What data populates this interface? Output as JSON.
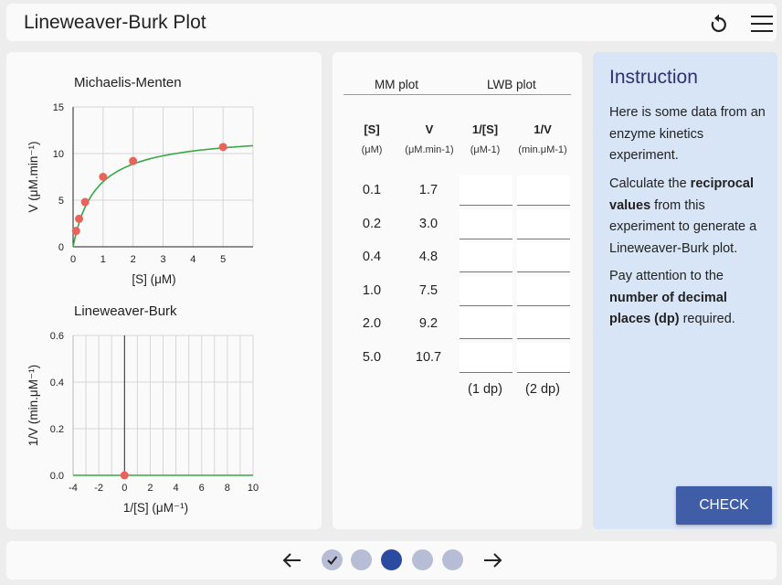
{
  "header": {
    "title": "Lineweaver-Burk Plot",
    "reset_icon": "reset-icon",
    "menu_icon": "hamburger-menu-icon"
  },
  "charts": {
    "mm": {
      "title": "Michaelis-Menten",
      "xlabel": "[S] (μM)",
      "ylabel": "V (μM.min⁻¹)"
    },
    "lwb": {
      "title": "Lineweaver-Burk",
      "xlabel": "1/[S] (μM⁻¹)",
      "ylabel": "1/V (min.μM⁻¹)"
    }
  },
  "chart_data": [
    {
      "type": "scatter",
      "title": "Michaelis-Menten",
      "xlabel": "[S] (μM)",
      "ylabel": "V (μM.min⁻¹)",
      "xlim": [
        0,
        6
      ],
      "ylim": [
        0,
        15
      ],
      "xticks": [
        0,
        1,
        2,
        3,
        4,
        5
      ],
      "yticks": [
        0,
        5,
        10,
        15
      ],
      "x": [
        0.1,
        0.2,
        0.4,
        1.0,
        2.0,
        5.0
      ],
      "y": [
        1.7,
        3.0,
        4.8,
        7.5,
        9.2,
        10.7
      ],
      "fit_curve": {
        "vmax": 12.2,
        "km": 0.75,
        "color": "#3aa64a"
      },
      "point_color": "#e8645a",
      "grid": true
    },
    {
      "type": "scatter",
      "title": "Lineweaver-Burk",
      "xlabel": "1/[S] (μM⁻¹)",
      "ylabel": "1/V (min.μM⁻¹)",
      "xlim": [
        -4,
        10
      ],
      "ylim": [
        0,
        0.6
      ],
      "xticks": [
        -4,
        -2,
        0,
        2,
        4,
        6,
        8,
        10
      ],
      "yticks": [
        0.0,
        0.2,
        0.4,
        0.6
      ],
      "x": [
        0
      ],
      "y": [
        0
      ],
      "line_color": "#3aa64a",
      "point_color": "#e8645a",
      "grid": true
    }
  ],
  "table": {
    "mm_group": "MM plot",
    "lwb_group": "LWB plot",
    "columns": [
      {
        "header": "[S]",
        "unit": "(μM)"
      },
      {
        "header": "V",
        "unit": "(μM.min-1)"
      },
      {
        "header": "1/[S]",
        "unit": "(μM-1)"
      },
      {
        "header": "1/V",
        "unit": "(min.μM-1)"
      }
    ],
    "rows": [
      {
        "s": "0.1",
        "v": "1.7",
        "inv_s": "",
        "inv_v": ""
      },
      {
        "s": "0.2",
        "v": "3.0",
        "inv_s": "",
        "inv_v": ""
      },
      {
        "s": "0.4",
        "v": "4.8",
        "inv_s": "",
        "inv_v": ""
      },
      {
        "s": "1.0",
        "v": "7.5",
        "inv_s": "",
        "inv_v": ""
      },
      {
        "s": "2.0",
        "v": "9.2",
        "inv_s": "",
        "inv_v": ""
      },
      {
        "s": "5.0",
        "v": "10.7",
        "inv_s": "",
        "inv_v": ""
      }
    ],
    "dp_inv_s": "(1 dp)",
    "dp_inv_v": "(2 dp)"
  },
  "instruction": {
    "title": "Instruction",
    "p1": "Here is some data from an enzyme kinetics experiment.",
    "p2_pre": "Calculate the ",
    "p2_bold": "reciprocal values",
    "p2_post": " from this experiment to generate a Lineweaver-Burk plot.",
    "p3_pre": "Pay attention to the ",
    "p3_bold": "number of decimal places (dp)",
    "p3_post": " required.",
    "check_label": "CHECK"
  },
  "footer": {
    "prev_icon": "arrow-left-icon",
    "next_icon": "arrow-right-icon",
    "steps": [
      {
        "state": "done",
        "icon": "checkmark-icon"
      },
      {
        "state": "todo"
      },
      {
        "state": "active"
      },
      {
        "state": "todo"
      },
      {
        "state": "todo"
      }
    ]
  },
  "colors": {
    "accent": "#3f5ea7",
    "active_step": "#2b4ba0",
    "step": "#b8bdd6",
    "instruction_bg": "#d8e5f6",
    "curve": "#3aa64a",
    "point": "#e8645a"
  }
}
